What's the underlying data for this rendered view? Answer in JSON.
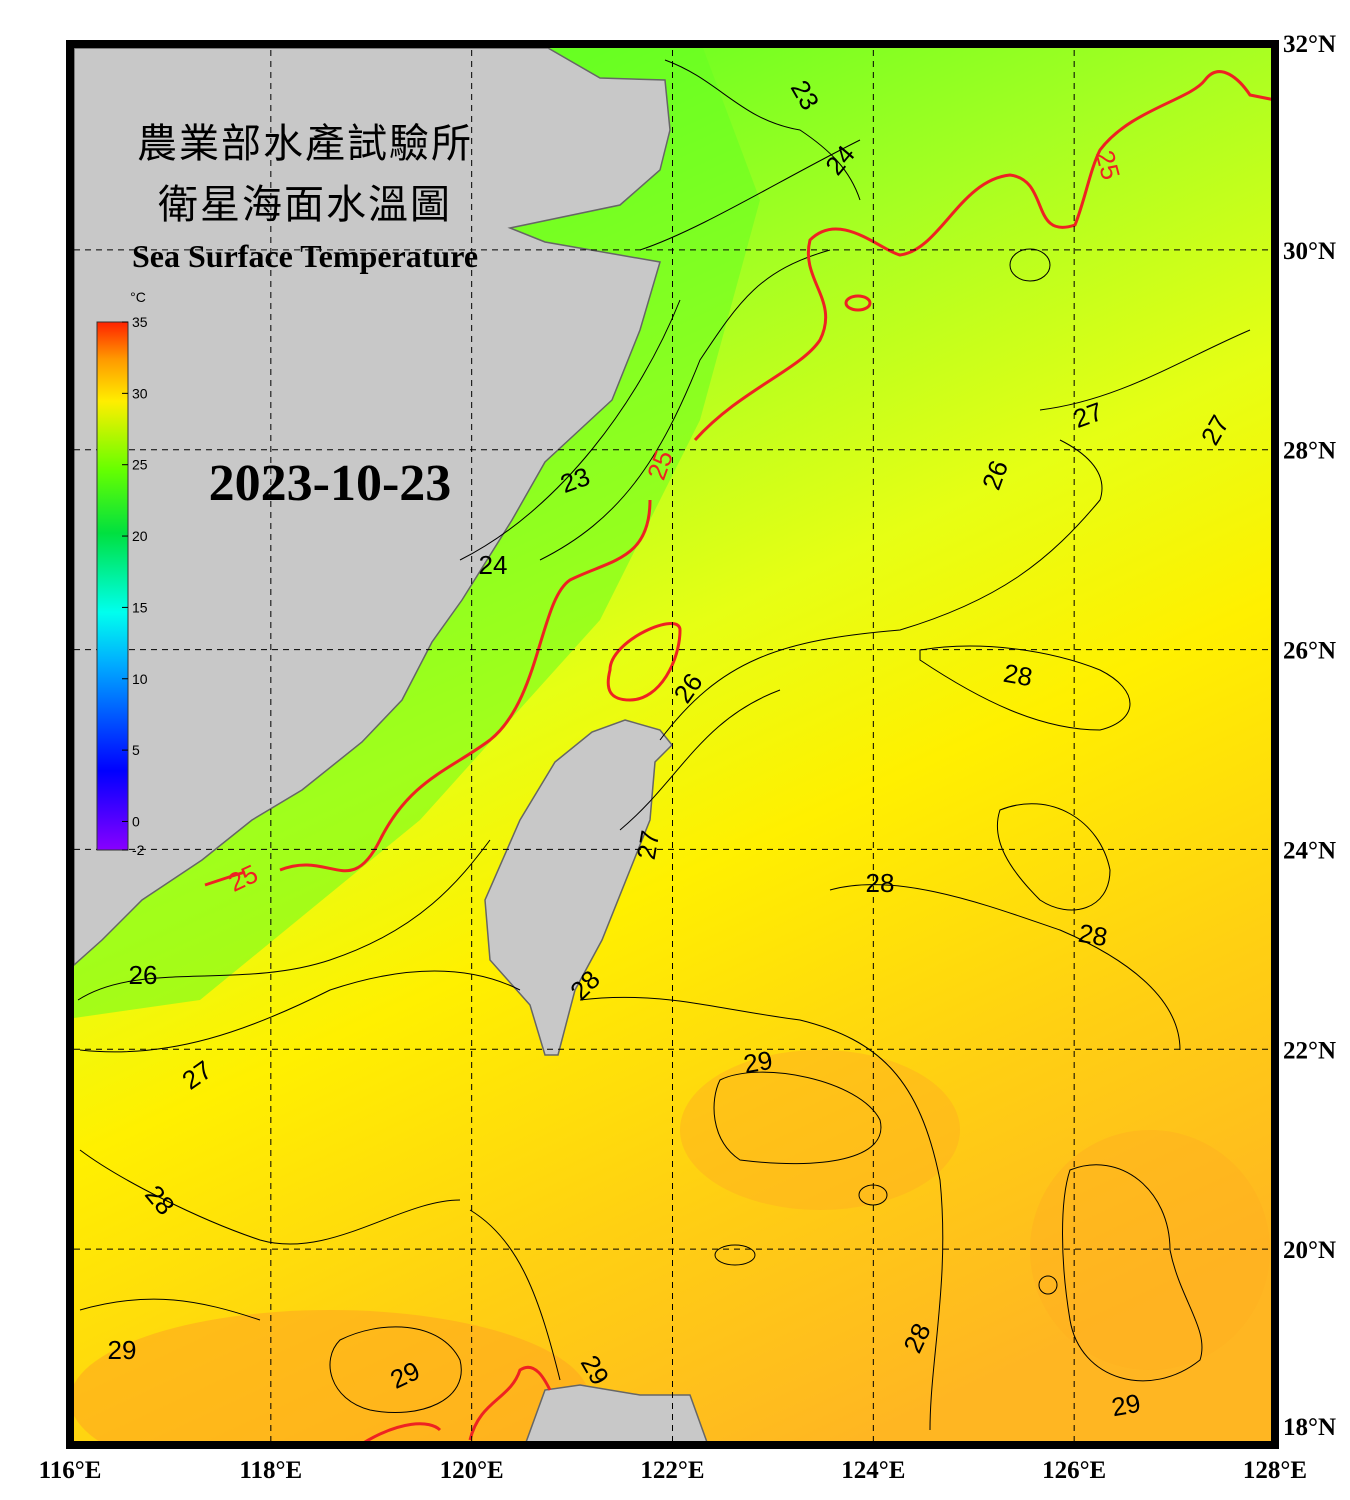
{
  "title_zh_1": "農業部水產試驗所",
  "title_zh_2": "衛星海面水溫圖",
  "title_en": "Sea Surface Temperature",
  "date": "2023-10-23",
  "colorbar": {
    "unit": "°C",
    "ticks": [
      35,
      30,
      25,
      20,
      15,
      10,
      5,
      0,
      -2
    ]
  },
  "lon_labels": [
    "116°E",
    "118°E",
    "120°E",
    "122°E",
    "124°E",
    "126°E",
    "128°E"
  ],
  "lat_labels": [
    "32°N",
    "30°N",
    "28°N",
    "26°N",
    "24°N",
    "22°N",
    "20°N",
    "18°N"
  ],
  "contour_labels": [
    23,
    24,
    25,
    27,
    27,
    26,
    23,
    25,
    24,
    26,
    28,
    27,
    28,
    28,
    28,
    26,
    27,
    29,
    28,
    29,
    29,
    29,
    28,
    29,
    25
  ]
}
